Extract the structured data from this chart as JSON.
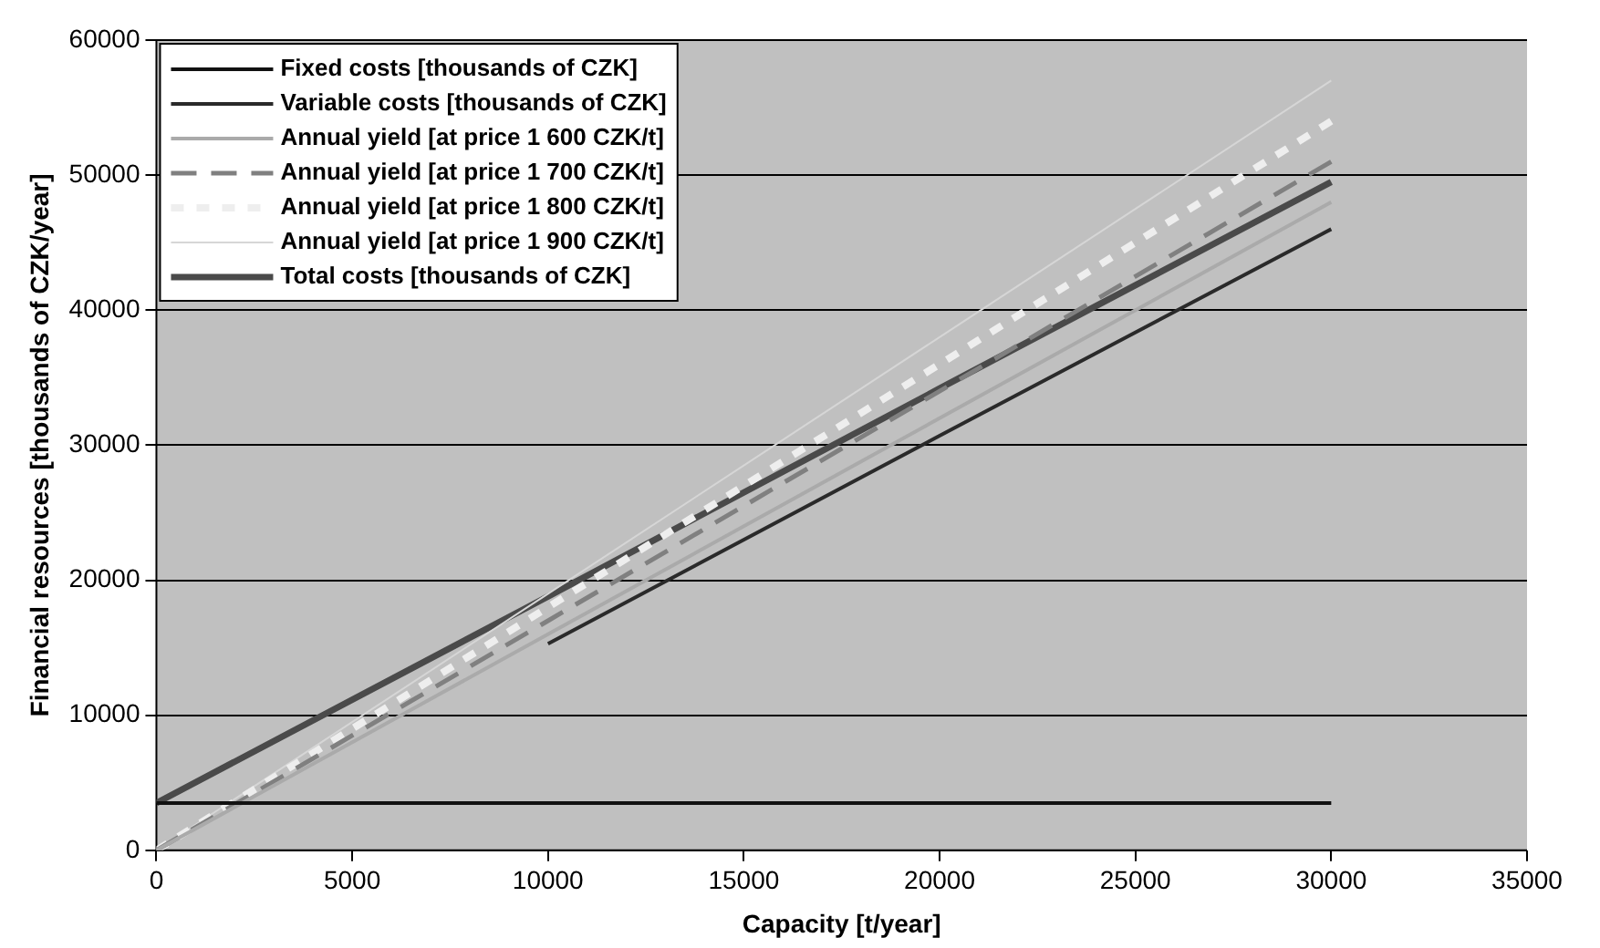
{
  "chart_data": {
    "type": "line",
    "xlabel": "Capacity [t/year]",
    "ylabel": "Financial resources [thousands of CZK/year]",
    "xlim": [
      0,
      35000
    ],
    "xticks": [
      0,
      5000,
      10000,
      15000,
      20000,
      25000,
      30000,
      35000
    ],
    "ylim": [
      0,
      60000
    ],
    "yticks": [
      0,
      10000,
      20000,
      30000,
      40000,
      50000,
      60000
    ],
    "grid": "y",
    "legend": "top left",
    "marker": "none",
    "series": [
      {
        "name": "Fixed costs [thousands of CZK]",
        "color": "#111111",
        "x": [
          0,
          10000,
          20000,
          30000
        ],
        "values": [
          3500,
          3500,
          3500,
          3500
        ]
      },
      {
        "name": "Variable costs [thousands of CZK]",
        "color": "#2a2a2a",
        "x": [
          10000,
          20000,
          30000
        ],
        "values": [
          15300,
          30700,
          46000
        ]
      },
      {
        "name": "Annual yield [at price 1 600 CZK/t]",
        "color": "#aaaaaa",
        "x": [
          0,
          10000,
          20000,
          30000
        ],
        "values": [
          0,
          16000,
          32000,
          48000
        ]
      },
      {
        "name": "Annual yield [at price 1 700 CZK/t]",
        "color": "#808080",
        "line_style": "dashed",
        "x": [
          0,
          10000,
          20000,
          30000
        ],
        "values": [
          0,
          17000,
          34000,
          51000
        ]
      },
      {
        "name": "Annual yield [at price 1 800 CZK/t]",
        "color": "#eeeeee",
        "line_style": "dotted",
        "x": [
          0,
          10000,
          20000,
          30000
        ],
        "values": [
          0,
          18000,
          36000,
          54000
        ]
      },
      {
        "name": "Annual yield [at price 1 900 CZK/t]",
        "color": "#d6d6d6",
        "x": [
          0,
          10000,
          20000,
          30000
        ],
        "values": [
          0,
          19000,
          38000,
          57000
        ]
      },
      {
        "name": "Total costs [thousands of CZK]",
        "color": "#4a4a4a",
        "x": [
          0,
          10000,
          20000,
          30000
        ],
        "values": [
          3500,
          18800,
          34200,
          49500
        ]
      }
    ]
  }
}
